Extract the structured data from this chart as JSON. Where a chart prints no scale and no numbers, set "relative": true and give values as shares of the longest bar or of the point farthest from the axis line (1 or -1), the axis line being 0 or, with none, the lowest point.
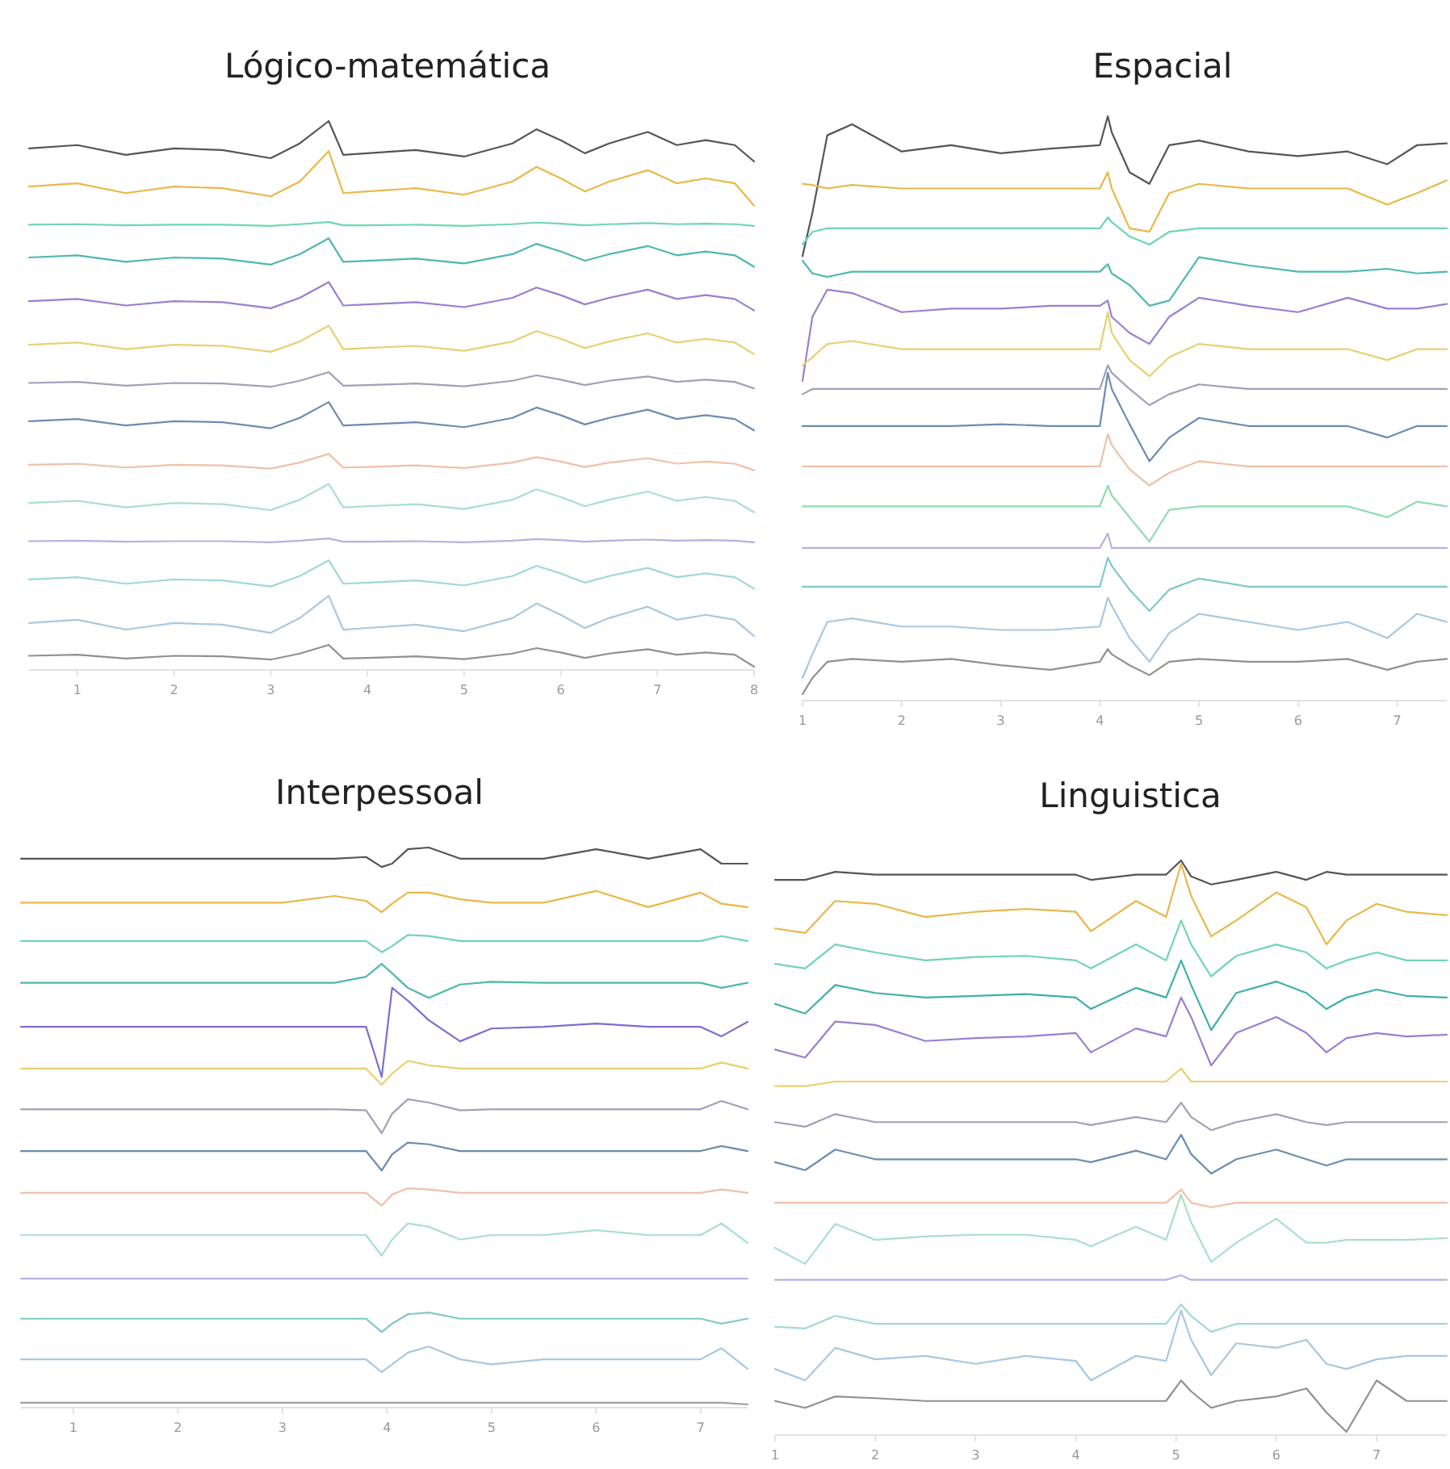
{
  "chart_data": [
    {
      "type": "line",
      "title": "Lógico-matemática",
      "relative": true,
      "xlim": [
        0.5,
        8
      ],
      "xticks": [
        1,
        2,
        3,
        4,
        5,
        6,
        7,
        8
      ],
      "x": [
        0.5,
        1,
        1.5,
        2,
        2.5,
        3,
        3.3,
        3.6,
        3.75,
        4,
        4.5,
        5,
        5.5,
        5.75,
        6,
        6.25,
        6.5,
        6.9,
        7.2,
        7.5,
        7.8,
        8
      ],
      "series": [
        {
          "color": "#555555",
          "values": [
            0.95,
            0.956,
            0.938,
            0.95,
            0.947,
            0.932,
            0.959,
            1.0,
            0.938,
            0.941,
            0.947,
            0.935,
            0.959,
            0.985,
            0.965,
            0.941,
            0.959,
            0.98,
            0.956,
            0.965,
            0.956,
            0.926
          ]
        },
        {
          "color": "#e8b84a",
          "values": [
            0.88,
            0.886,
            0.868,
            0.88,
            0.877,
            0.862,
            0.889,
            0.945,
            0.868,
            0.871,
            0.877,
            0.865,
            0.889,
            0.916,
            0.895,
            0.871,
            0.889,
            0.91,
            0.886,
            0.895,
            0.886,
            0.845
          ]
        },
        {
          "color": "#6fd6b0",
          "values": [
            0.81,
            0.811,
            0.809,
            0.81,
            0.81,
            0.808,
            0.811,
            0.815,
            0.809,
            0.809,
            0.81,
            0.808,
            0.811,
            0.814,
            0.812,
            0.809,
            0.811,
            0.813,
            0.811,
            0.812,
            0.811,
            0.808
          ]
        },
        {
          "color": "#4fb8b0",
          "values": [
            0.75,
            0.754,
            0.742,
            0.75,
            0.748,
            0.737,
            0.756,
            0.785,
            0.742,
            0.744,
            0.748,
            0.739,
            0.756,
            0.775,
            0.761,
            0.744,
            0.756,
            0.771,
            0.754,
            0.761,
            0.754,
            0.733
          ]
        },
        {
          "color": "#9a7fd0",
          "values": [
            0.67,
            0.674,
            0.662,
            0.67,
            0.668,
            0.657,
            0.676,
            0.705,
            0.662,
            0.664,
            0.668,
            0.659,
            0.676,
            0.695,
            0.681,
            0.664,
            0.676,
            0.691,
            0.674,
            0.681,
            0.674,
            0.653
          ]
        },
        {
          "color": "#e8d070",
          "values": [
            0.59,
            0.594,
            0.582,
            0.59,
            0.588,
            0.577,
            0.596,
            0.625,
            0.582,
            0.584,
            0.588,
            0.579,
            0.596,
            0.615,
            0.601,
            0.584,
            0.596,
            0.611,
            0.594,
            0.601,
            0.594,
            0.573
          ]
        },
        {
          "color": "#a0a0b8",
          "values": [
            0.52,
            0.522,
            0.515,
            0.52,
            0.519,
            0.513,
            0.524,
            0.54,
            0.515,
            0.516,
            0.519,
            0.514,
            0.524,
            0.534,
            0.526,
            0.516,
            0.524,
            0.532,
            0.522,
            0.526,
            0.522,
            0.51
          ]
        },
        {
          "color": "#6c8cb0",
          "values": [
            0.45,
            0.454,
            0.442,
            0.45,
            0.448,
            0.437,
            0.456,
            0.485,
            0.442,
            0.444,
            0.448,
            0.439,
            0.456,
            0.475,
            0.461,
            0.444,
            0.456,
            0.471,
            0.454,
            0.461,
            0.454,
            0.433
          ]
        },
        {
          "color": "#f0c0a8",
          "values": [
            0.37,
            0.372,
            0.365,
            0.37,
            0.369,
            0.363,
            0.374,
            0.39,
            0.365,
            0.366,
            0.369,
            0.364,
            0.374,
            0.384,
            0.376,
            0.366,
            0.374,
            0.382,
            0.372,
            0.376,
            0.372,
            0.36
          ]
        },
        {
          "color": "#a8e0c8",
          "values": [
            0.3,
            0.304,
            0.292,
            0.3,
            0.298,
            0.287,
            0.306,
            0.335,
            0.292,
            0.294,
            0.298,
            0.289,
            0.306,
            0.325,
            0.311,
            0.294,
            0.306,
            0.321,
            0.304,
            0.311,
            0.304,
            0.283
          ]
        },
        {
          "color": "#b8b0e0",
          "values": [
            0.23,
            0.231,
            0.229,
            0.23,
            0.23,
            0.228,
            0.231,
            0.235,
            0.229,
            0.229,
            0.23,
            0.228,
            0.231,
            0.234,
            0.232,
            0.229,
            0.231,
            0.233,
            0.231,
            0.232,
            0.231,
            0.228
          ]
        },
        {
          "color": "#a0d8d8",
          "values": [
            0.16,
            0.164,
            0.152,
            0.16,
            0.158,
            0.147,
            0.166,
            0.195,
            0.152,
            0.154,
            0.158,
            0.149,
            0.166,
            0.185,
            0.171,
            0.154,
            0.166,
            0.181,
            0.164,
            0.171,
            0.164,
            0.143
          ]
        },
        {
          "color": "#a8c8e0",
          "values": [
            0.08,
            0.086,
            0.068,
            0.08,
            0.077,
            0.062,
            0.089,
            0.13,
            0.068,
            0.071,
            0.077,
            0.065,
            0.089,
            0.116,
            0.095,
            0.071,
            0.089,
            0.11,
            0.086,
            0.095,
            0.086,
            0.056
          ]
        },
        {
          "color": "#909090",
          "values": [
            0.02,
            0.022,
            0.015,
            0.02,
            0.019,
            0.013,
            0.024,
            0.04,
            0.015,
            0.016,
            0.019,
            0.014,
            0.024,
            0.034,
            0.026,
            0.016,
            0.024,
            0.032,
            0.022,
            0.026,
            0.022,
            0
          ]
        }
      ]
    },
    {
      "type": "line",
      "title": "Espacial",
      "relative": true,
      "xlim": [
        1,
        7.5
      ],
      "xticks": [
        1,
        2,
        3,
        4,
        5,
        6,
        7
      ],
      "x": [
        1,
        1.1,
        1.25,
        1.5,
        2,
        2.5,
        3,
        3.5,
        4,
        4.08,
        4.12,
        4.3,
        4.5,
        4.7,
        5,
        5.5,
        6,
        6.5,
        6.9,
        7.2,
        7.5
      ],
      "series": [
        {
          "color": "#555555",
          "values": [
            0.758,
            0.833,
            0.967,
            0.986,
            0.939,
            0.95,
            0.936,
            0.944,
            0.95,
            1.0,
            0.972,
            0.903,
            0.883,
            0.95,
            0.958,
            0.939,
            0.931,
            0.939,
            0.917,
            0.95,
            0.953
          ]
        },
        {
          "color": "#e8b84a",
          "values": [
            0.883,
            0.881,
            0.875,
            0.881,
            0.875,
            0.875,
            0.875,
            0.875,
            0.875,
            0.903,
            0.875,
            0.806,
            0.8,
            0.867,
            0.883,
            0.875,
            0.875,
            0.875,
            0.847,
            0.867,
            0.889
          ]
        },
        {
          "color": "#6fd6b0",
          "values": [
            0.778,
            0.8,
            0.806,
            0.806,
            0.806,
            0.806,
            0.806,
            0.806,
            0.806,
            0.825,
            0.817,
            0.792,
            0.778,
            0.8,
            0.806,
            0.806,
            0.806,
            0.806,
            0.806,
            0.806,
            0.806
          ]
        },
        {
          "color": "#4fb8b0",
          "values": [
            0.75,
            0.728,
            0.722,
            0.731,
            0.731,
            0.731,
            0.731,
            0.731,
            0.731,
            0.744,
            0.728,
            0.708,
            0.672,
            0.681,
            0.756,
            0.742,
            0.731,
            0.731,
            0.736,
            0.728,
            0.731
          ]
        },
        {
          "color": "#9a7fd0",
          "values": [
            0.542,
            0.653,
            0.7,
            0.694,
            0.661,
            0.667,
            0.667,
            0.672,
            0.672,
            0.681,
            0.653,
            0.625,
            0.606,
            0.653,
            0.686,
            0.672,
            0.661,
            0.686,
            0.667,
            0.667,
            0.675
          ]
        },
        {
          "color": "#e8d070",
          "values": [
            0.569,
            0.583,
            0.606,
            0.611,
            0.597,
            0.597,
            0.597,
            0.597,
            0.597,
            0.661,
            0.625,
            0.578,
            0.55,
            0.583,
            0.606,
            0.597,
            0.597,
            0.597,
            0.578,
            0.597,
            0.597
          ]
        },
        {
          "color": "#a0a0b8",
          "values": [
            0.519,
            0.528,
            0.528,
            0.528,
            0.528,
            0.528,
            0.528,
            0.528,
            0.528,
            0.569,
            0.556,
            0.528,
            0.5,
            0.519,
            0.536,
            0.528,
            0.528,
            0.528,
            0.528,
            0.528,
            0.528
          ]
        },
        {
          "color": "#6c8cb0",
          "values": [
            0.464,
            0.464,
            0.464,
            0.464,
            0.464,
            0.464,
            0.467,
            0.464,
            0.464,
            0.556,
            0.528,
            0.467,
            0.403,
            0.444,
            0.478,
            0.464,
            0.464,
            0.464,
            0.444,
            0.464,
            0.464
          ]
        },
        {
          "color": "#f0c0a8",
          "values": [
            0.394,
            0.394,
            0.394,
            0.394,
            0.394,
            0.394,
            0.394,
            0.394,
            0.394,
            0.45,
            0.431,
            0.389,
            0.361,
            0.383,
            0.403,
            0.394,
            0.394,
            0.394,
            0.394,
            0.394,
            0.394
          ]
        },
        {
          "color": "#8fdcb0",
          "values": [
            0.325,
            0.325,
            0.325,
            0.325,
            0.325,
            0.325,
            0.325,
            0.325,
            0.325,
            0.361,
            0.344,
            0.306,
            0.264,
            0.319,
            0.325,
            0.325,
            0.325,
            0.325,
            0.306,
            0.333,
            0.325
          ]
        },
        {
          "color": "#b8b0e0",
          "values": [
            0.253,
            0.253,
            0.253,
            0.253,
            0.253,
            0.253,
            0.253,
            0.253,
            0.253,
            0.278,
            0.253,
            0.253,
            0.253,
            0.253,
            0.253,
            0.253,
            0.253,
            0.253,
            0.253,
            0.253,
            0.253
          ]
        },
        {
          "color": "#80c8c8",
          "values": [
            0.186,
            0.186,
            0.186,
            0.186,
            0.186,
            0.186,
            0.186,
            0.186,
            0.186,
            0.236,
            0.222,
            0.181,
            0.144,
            0.181,
            0.2,
            0.186,
            0.186,
            0.186,
            0.186,
            0.186,
            0.186
          ]
        },
        {
          "color": "#a8c8e0",
          "values": [
            0.028,
            0.069,
            0.125,
            0.131,
            0.117,
            0.117,
            0.111,
            0.111,
            0.117,
            0.167,
            0.153,
            0.097,
            0.056,
            0.106,
            0.139,
            0.125,
            0.111,
            0.125,
            0.097,
            0.139,
            0.125
          ]
        },
        {
          "color": "#909090",
          "values": [
            0,
            0.028,
            0.056,
            0.061,
            0.056,
            0.061,
            0.05,
            0.042,
            0.056,
            0.078,
            0.069,
            0.05,
            0.033,
            0.056,
            0.061,
            0.056,
            0.056,
            0.061,
            0.042,
            0.056,
            0.061
          ]
        }
      ]
    },
    {
      "type": "line",
      "title": "Interpessoal",
      "relative": true,
      "xlim": [
        0.5,
        7.45
      ],
      "xticks": [
        1,
        2,
        3,
        4,
        5,
        6,
        7
      ],
      "x": [
        0.5,
        1,
        1.5,
        2,
        2.5,
        3,
        3.5,
        3.8,
        3.95,
        4.05,
        4.2,
        4.4,
        4.7,
        5,
        5.5,
        6,
        6.5,
        7,
        7.2,
        7.45
      ],
      "series": [
        {
          "color": "#555555",
          "values": [
            0.98,
            0.98,
            0.98,
            0.98,
            0.98,
            0.98,
            0.98,
            0.983,
            0.965,
            0.971,
            0.997,
            1.0,
            0.98,
            0.98,
            0.98,
            0.997,
            0.98,
            0.997,
            0.971,
            0.971
          ]
        },
        {
          "color": "#e8b84a",
          "values": [
            0.901,
            0.901,
            0.901,
            0.901,
            0.901,
            0.901,
            0.913,
            0.904,
            0.884,
            0.899,
            0.919,
            0.919,
            0.907,
            0.901,
            0.901,
            0.922,
            0.893,
            0.919,
            0.899,
            0.893
          ]
        },
        {
          "color": "#6fd6b0",
          "values": [
            0.832,
            0.832,
            0.832,
            0.832,
            0.832,
            0.832,
            0.832,
            0.832,
            0.812,
            0.823,
            0.843,
            0.841,
            0.832,
            0.832,
            0.832,
            0.832,
            0.832,
            0.832,
            0.841,
            0.832
          ]
        },
        {
          "color": "#4fb8b0",
          "values": [
            0.757,
            0.757,
            0.757,
            0.757,
            0.757,
            0.757,
            0.757,
            0.768,
            0.791,
            0.774,
            0.748,
            0.73,
            0.754,
            0.759,
            0.757,
            0.757,
            0.757,
            0.757,
            0.748,
            0.757
          ]
        },
        {
          "color": "#7a6fd0",
          "values": [
            0.678,
            0.678,
            0.678,
            0.678,
            0.678,
            0.678,
            0.678,
            0.678,
            0.588,
            0.748,
            0.725,
            0.69,
            0.652,
            0.675,
            0.678,
            0.684,
            0.678,
            0.678,
            0.661,
            0.687
          ]
        },
        {
          "color": "#e8d070",
          "values": [
            0.603,
            0.603,
            0.603,
            0.603,
            0.603,
            0.603,
            0.603,
            0.603,
            0.574,
            0.594,
            0.617,
            0.609,
            0.603,
            0.603,
            0.603,
            0.603,
            0.603,
            0.603,
            0.614,
            0.603
          ]
        },
        {
          "color": "#a0a0b8",
          "values": [
            0.53,
            0.53,
            0.53,
            0.53,
            0.53,
            0.53,
            0.53,
            0.528,
            0.487,
            0.522,
            0.548,
            0.542,
            0.528,
            0.53,
            0.53,
            0.53,
            0.53,
            0.53,
            0.545,
            0.53
          ]
        },
        {
          "color": "#6c8cb0",
          "values": [
            0.455,
            0.455,
            0.455,
            0.455,
            0.455,
            0.455,
            0.455,
            0.455,
            0.42,
            0.449,
            0.47,
            0.467,
            0.455,
            0.455,
            0.455,
            0.455,
            0.455,
            0.455,
            0.464,
            0.455
          ]
        },
        {
          "color": "#f0c0a8",
          "values": [
            0.38,
            0.38,
            0.38,
            0.38,
            0.38,
            0.38,
            0.38,
            0.38,
            0.357,
            0.377,
            0.388,
            0.386,
            0.38,
            0.38,
            0.38,
            0.38,
            0.38,
            0.38,
            0.386,
            0.38
          ]
        },
        {
          "color": "#a8e0c8",
          "values": [
            0.304,
            0.304,
            0.304,
            0.304,
            0.304,
            0.304,
            0.304,
            0.304,
            0.267,
            0.296,
            0.325,
            0.319,
            0.296,
            0.304,
            0.304,
            0.313,
            0.304,
            0.304,
            0.325,
            0.29
          ]
        },
        {
          "color": "#b8b0e0",
          "values": [
            0.226,
            0.226,
            0.226,
            0.226,
            0.226,
            0.226,
            0.226,
            0.226,
            0.226,
            0.226,
            0.226,
            0.226,
            0.226,
            0.226,
            0.226,
            0.226,
            0.226,
            0.226,
            0.226,
            0.226
          ]
        },
        {
          "color": "#80c8c8",
          "values": [
            0.154,
            0.154,
            0.154,
            0.154,
            0.154,
            0.154,
            0.154,
            0.154,
            0.13,
            0.145,
            0.162,
            0.165,
            0.154,
            0.154,
            0.154,
            0.154,
            0.154,
            0.154,
            0.145,
            0.154
          ]
        },
        {
          "color": "#a8c8e0",
          "values": [
            0.081,
            0.081,
            0.081,
            0.081,
            0.081,
            0.081,
            0.081,
            0.081,
            0.058,
            0.072,
            0.093,
            0.104,
            0.081,
            0.072,
            0.081,
            0.081,
            0.081,
            0.081,
            0.101,
            0.064
          ]
        },
        {
          "color": "#a0a0a0",
          "values": [
            0.003,
            0.003,
            0.003,
            0.003,
            0.003,
            0.003,
            0.003,
            0.003,
            0.003,
            0.003,
            0.003,
            0.003,
            0.003,
            0.003,
            0.003,
            0.003,
            0.003,
            0.003,
            0.003,
            0
          ]
        }
      ]
    },
    {
      "type": "line",
      "title": "Linguistica",
      "relative": true,
      "xlim": [
        1,
        7.7
      ],
      "xticks": [
        1,
        2,
        3,
        4,
        5,
        6,
        7
      ],
      "x": [
        1,
        1.3,
        1.6,
        2,
        2.5,
        3,
        3.5,
        4,
        4.15,
        4.6,
        4.9,
        5.05,
        5.15,
        5.35,
        5.6,
        6,
        6.3,
        6.5,
        6.7,
        7,
        7.3,
        7.7
      ],
      "series": [
        {
          "color": "#555555",
          "values": [
            0.966,
            0.966,
            0.98,
            0.975,
            0.975,
            0.975,
            0.975,
            0.975,
            0.966,
            0.975,
            0.975,
            1.0,
            0.972,
            0.958,
            0.966,
            0.98,
            0.966,
            0.98,
            0.975,
            0.975,
            0.975,
            0.975
          ]
        },
        {
          "color": "#e8b84a",
          "values": [
            0.881,
            0.873,
            0.929,
            0.924,
            0.901,
            0.91,
            0.915,
            0.91,
            0.876,
            0.929,
            0.901,
            0.994,
            0.938,
            0.867,
            0.895,
            0.944,
            0.918,
            0.853,
            0.895,
            0.924,
            0.91,
            0.904
          ]
        },
        {
          "color": "#6fd6b0",
          "values": [
            0.819,
            0.811,
            0.853,
            0.839,
            0.825,
            0.831,
            0.833,
            0.825,
            0.811,
            0.853,
            0.825,
            0.895,
            0.853,
            0.797,
            0.833,
            0.853,
            0.839,
            0.811,
            0.825,
            0.839,
            0.825,
            0.825
          ]
        },
        {
          "color": "#3fb0a8",
          "values": [
            0.749,
            0.732,
            0.782,
            0.768,
            0.76,
            0.763,
            0.766,
            0.76,
            0.74,
            0.777,
            0.76,
            0.825,
            0.782,
            0.703,
            0.768,
            0.788,
            0.768,
            0.74,
            0.76,
            0.774,
            0.763,
            0.76
          ]
        },
        {
          "color": "#9a7fd0",
          "values": [
            0.669,
            0.655,
            0.718,
            0.712,
            0.684,
            0.689,
            0.692,
            0.698,
            0.664,
            0.706,
            0.692,
            0.76,
            0.726,
            0.641,
            0.698,
            0.726,
            0.698,
            0.664,
            0.689,
            0.698,
            0.692,
            0.695
          ]
        },
        {
          "color": "#e8d070",
          "values": [
            0.605,
            0.605,
            0.613,
            0.613,
            0.613,
            0.613,
            0.613,
            0.613,
            0.613,
            0.613,
            0.613,
            0.636,
            0.613,
            0.613,
            0.613,
            0.613,
            0.613,
            0.613,
            0.613,
            0.613,
            0.613,
            0.613
          ]
        },
        {
          "color": "#a0a0b8",
          "values": [
            0.542,
            0.534,
            0.556,
            0.542,
            0.542,
            0.542,
            0.542,
            0.542,
            0.537,
            0.551,
            0.542,
            0.576,
            0.551,
            0.528,
            0.542,
            0.556,
            0.542,
            0.537,
            0.542,
            0.542,
            0.542,
            0.542
          ]
        },
        {
          "color": "#6c8cb0",
          "values": [
            0.472,
            0.458,
            0.494,
            0.477,
            0.477,
            0.477,
            0.477,
            0.477,
            0.472,
            0.492,
            0.477,
            0.52,
            0.486,
            0.452,
            0.477,
            0.494,
            0.477,
            0.466,
            0.477,
            0.477,
            0.477,
            0.477
          ]
        },
        {
          "color": "#f0c0a8",
          "values": [
            0.401,
            0.401,
            0.401,
            0.401,
            0.401,
            0.401,
            0.401,
            0.401,
            0.401,
            0.401,
            0.401,
            0.424,
            0.401,
            0.393,
            0.401,
            0.401,
            0.401,
            0.401,
            0.401,
            0.401,
            0.401,
            0.401
          ]
        },
        {
          "color": "#a8e0c8",
          "values": [
            0.322,
            0.294,
            0.364,
            0.336,
            0.342,
            0.345,
            0.345,
            0.336,
            0.325,
            0.359,
            0.336,
            0.415,
            0.367,
            0.297,
            0.331,
            0.373,
            0.331,
            0.331,
            0.336,
            0.336,
            0.336,
            0.339
          ]
        },
        {
          "color": "#b8b0e0",
          "values": [
            0.266,
            0.266,
            0.266,
            0.266,
            0.266,
            0.266,
            0.266,
            0.266,
            0.266,
            0.266,
            0.266,
            0.274,
            0.266,
            0.266,
            0.266,
            0.266,
            0.266,
            0.266,
            0.266,
            0.266,
            0.266,
            0.266
          ]
        },
        {
          "color": "#a0d8d8",
          "values": [
            0.184,
            0.181,
            0.203,
            0.189,
            0.189,
            0.189,
            0.189,
            0.189,
            0.189,
            0.189,
            0.189,
            0.223,
            0.203,
            0.175,
            0.189,
            0.189,
            0.189,
            0.189,
            0.189,
            0.189,
            0.189,
            0.189
          ]
        },
        {
          "color": "#a8c8e0",
          "values": [
            0.11,
            0.09,
            0.147,
            0.127,
            0.133,
            0.119,
            0.133,
            0.124,
            0.09,
            0.133,
            0.124,
            0.212,
            0.161,
            0.099,
            0.155,
            0.147,
            0.161,
            0.119,
            0.11,
            0.127,
            0.133,
            0.133
          ]
        },
        {
          "color": "#909090",
          "values": [
            0.054,
            0.042,
            0.062,
            0.059,
            0.054,
            0.054,
            0.054,
            0.054,
            0.054,
            0.054,
            0.054,
            0.09,
            0.071,
            0.042,
            0.054,
            0.062,
            0.076,
            0.034,
            0,
            0.09,
            0.054,
            0.054
          ]
        }
      ]
    }
  ]
}
